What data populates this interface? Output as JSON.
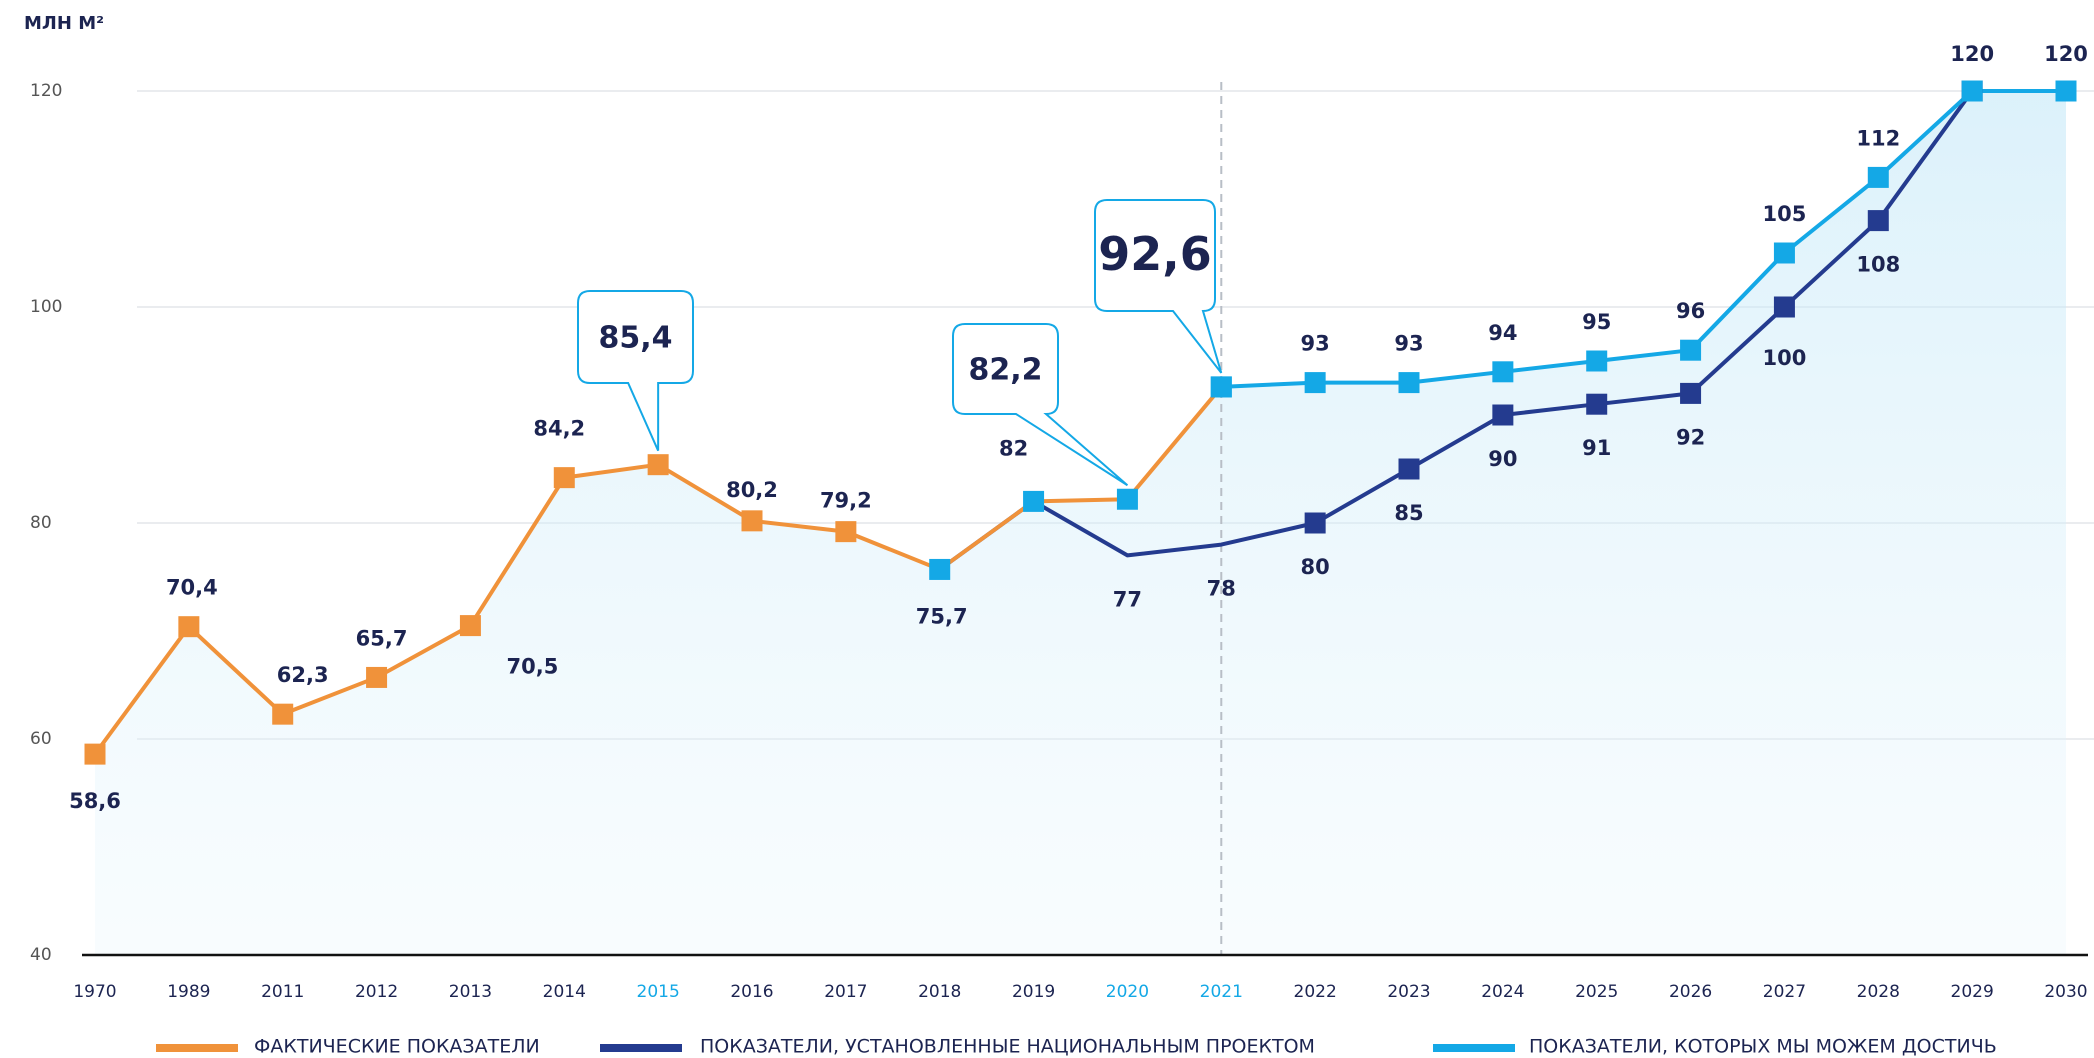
{
  "chart_data": {
    "type": "line",
    "y_unit": "МЛН М²",
    "categories": [
      "1970",
      "1989",
      "2011",
      "2012",
      "2013",
      "2014",
      "2015",
      "2016",
      "2017",
      "2018",
      "2019",
      "2020",
      "2021",
      "2022",
      "2023",
      "2024",
      "2025",
      "2026",
      "2027",
      "2028",
      "2029",
      "2030"
    ],
    "series": [
      {
        "name": "ФАКТИЧЕСКИЕ ПОКАЗАТЕЛИ",
        "color": "#f0923a",
        "values": [
          58.6,
          70.4,
          62.3,
          65.7,
          70.5,
          84.2,
          85.4,
          80.2,
          79.2,
          75.7,
          82,
          82.2,
          92.6,
          null,
          null,
          null,
          null,
          null,
          null,
          null,
          null,
          null
        ],
        "value_labels": [
          "58,6",
          "70,4",
          "62,3",
          "65,7",
          "70,5",
          "84,2",
          "85,4",
          "80,2",
          "79,2",
          "75,7",
          "82",
          "82,2",
          "92,6",
          null,
          null,
          null,
          null,
          null,
          null,
          null,
          null,
          null
        ]
      },
      {
        "name": "ПОКАЗАТЕЛИ, УСТАНОВЛЕННЫЕ НАЦИОНАЛЬНЫМ ПРОЕКТОМ",
        "color": "#243b8f",
        "values": [
          null,
          null,
          null,
          null,
          null,
          null,
          null,
          null,
          null,
          75.7,
          82,
          77,
          78,
          80,
          85,
          90,
          91,
          92,
          100,
          108,
          120,
          120
        ]
      },
      {
        "name": "ПОКАЗАТЕЛИ, КОТОРЫХ МЫ МОЖЕМ ДОСТИЧЬ",
        "color": "#14a8e6",
        "values": [
          null,
          null,
          null,
          null,
          null,
          null,
          null,
          null,
          null,
          null,
          null,
          null,
          92.6,
          93,
          93,
          94,
          95,
          96,
          105,
          112,
          120,
          120
        ]
      }
    ],
    "ylim": [
      40,
      120
    ],
    "yticks": [
      40,
      60,
      80,
      100,
      120
    ],
    "grid": true
  }
}
